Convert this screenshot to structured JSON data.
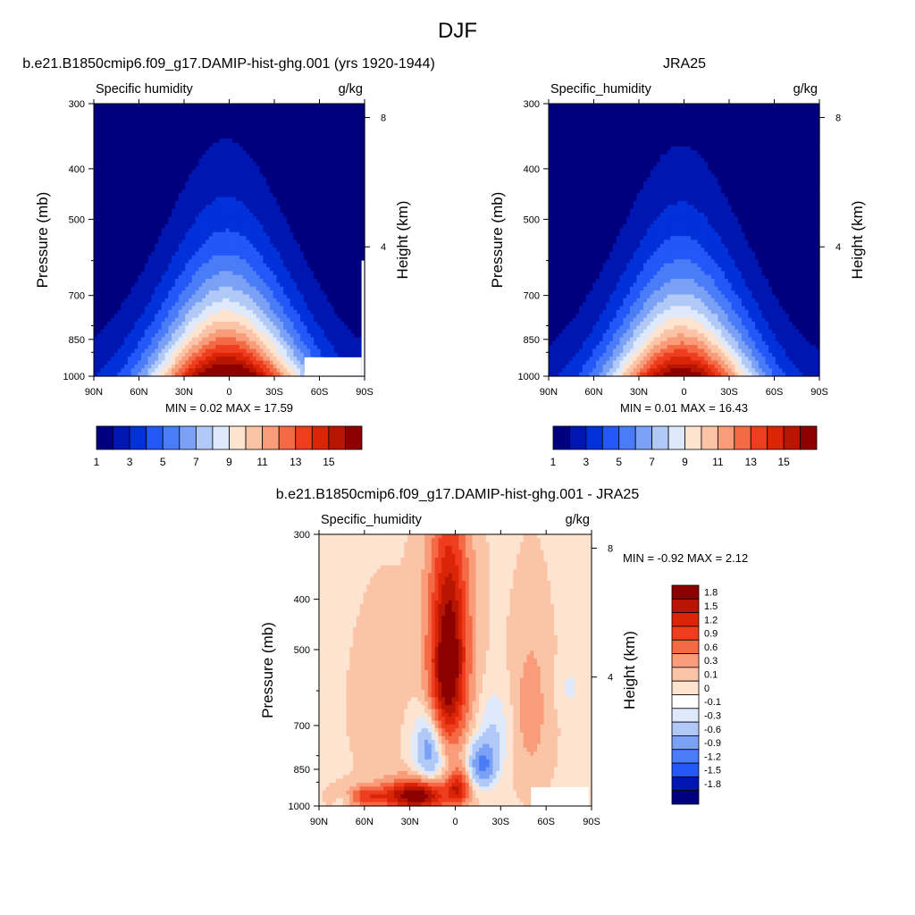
{
  "figure": {
    "title": "DJF"
  },
  "chart_data": [
    {
      "type": "heatmap",
      "panel": "model",
      "title": "b.e21.B1850cmip6.f09_g17.DAMIP-hist-ghg.001 (yrs 1920-1944)",
      "left_label": "Specific humidity",
      "units": "g/kg",
      "ylabel": "Pressure (mb)",
      "y2label": "Height (km)",
      "x_ticks": [
        "90N",
        "60N",
        "30N",
        "0",
        "30S",
        "60S",
        "90S"
      ],
      "x_range": [
        90,
        -90
      ],
      "y_ticks": [
        "300",
        "400",
        "500",
        "700",
        "850",
        "1000"
      ],
      "y_range_mb": [
        1000,
        300
      ],
      "y2_ticks": [
        "8",
        "4"
      ],
      "stats": {
        "min_label": "MIN =",
        "min": "0.02",
        "max_label": "MAX =",
        "max": "17.59"
      },
      "peak": {
        "lat": 0,
        "value": 17.59
      },
      "contour_levels": [
        1,
        2,
        3,
        4,
        5,
        6,
        7,
        8,
        9,
        10,
        11,
        12,
        13,
        14,
        15,
        16
      ],
      "colorbar_labels": [
        "1",
        "3",
        "5",
        "7",
        "9",
        "11",
        "13",
        "15"
      ],
      "colorbar_colors": [
        "#00007f",
        "#0016b1",
        "#0031d9",
        "#2357f8",
        "#4a7cf8",
        "#7aa1f6",
        "#b0c9f7",
        "#dee9fb",
        "#fde4d0",
        "#fbc4a6",
        "#f89c7a",
        "#f46a45",
        "#ef3d1f",
        "#db2507",
        "#b81502",
        "#8c0000"
      ]
    },
    {
      "type": "heatmap",
      "panel": "obs",
      "title": "JRA25",
      "left_label": "Specific_humidity",
      "units": "g/kg",
      "ylabel": "Pressure (mb)",
      "y2label": "Height (km)",
      "x_ticks": [
        "90N",
        "60N",
        "30N",
        "0",
        "30S",
        "60S",
        "90S"
      ],
      "x_range": [
        90,
        -90
      ],
      "y_ticks": [
        "300",
        "400",
        "500",
        "700",
        "850",
        "1000"
      ],
      "y_range_mb": [
        1000,
        300
      ],
      "y2_ticks": [
        "8",
        "4"
      ],
      "stats": {
        "min_label": "MIN =",
        "min": "0.01",
        "max_label": "MAX =",
        "max": "16.43"
      },
      "peak": {
        "lat": 0,
        "value": 16.43
      },
      "contour_levels": [
        1,
        2,
        3,
        4,
        5,
        6,
        7,
        8,
        9,
        10,
        11,
        12,
        13,
        14,
        15,
        16
      ],
      "colorbar_labels": [
        "1",
        "3",
        "5",
        "7",
        "9",
        "11",
        "13",
        "15"
      ],
      "colorbar_colors": [
        "#00007f",
        "#0016b1",
        "#0031d9",
        "#2357f8",
        "#4a7cf8",
        "#7aa1f6",
        "#b0c9f7",
        "#dee9fb",
        "#fde4d0",
        "#fbc4a6",
        "#f89c7a",
        "#f46a45",
        "#ef3d1f",
        "#db2507",
        "#b81502",
        "#8c0000"
      ]
    },
    {
      "type": "heatmap",
      "panel": "difference",
      "title": "b.e21.B1850cmip6.f09_g17.DAMIP-hist-ghg.001 - JRA25",
      "left_label": "Specific_humidity",
      "units": "g/kg",
      "ylabel": "Pressure (mb)",
      "y2label": "Height (km)",
      "x_ticks": [
        "90N",
        "60N",
        "30N",
        "0",
        "30S",
        "60S",
        "90S"
      ],
      "x_range": [
        90,
        -90
      ],
      "y_ticks": [
        "300",
        "400",
        "500",
        "700",
        "850",
        "1000"
      ],
      "y_range_mb": [
        1000,
        300
      ],
      "y2_ticks": [
        "8",
        "4"
      ],
      "stats": {
        "min_label": "MIN =",
        "min": "-0.92",
        "max_label": "MAX =",
        "max": "2.12"
      },
      "contour_levels": [
        -1.8,
        -1.5,
        -1.2,
        -0.9,
        -0.6,
        -0.3,
        -0.1,
        0,
        0.1,
        0.3,
        0.6,
        0.9,
        1.2,
        1.5,
        1.8
      ],
      "colorbar_labels": [
        "1.8",
        "1.5",
        "1.2",
        "0.9",
        "0.6",
        "0.3",
        "0.1",
        "0",
        "-0.1",
        "-0.3",
        "-0.6",
        "-0.9",
        "-1.2",
        "-1.5",
        "-1.8"
      ],
      "colorbar_colors": [
        "#8c0000",
        "#b81502",
        "#db2507",
        "#ef3d1f",
        "#f46a45",
        "#f89c7a",
        "#fbc4a6",
        "#fde4d0",
        "#ffffff",
        "#dee9fb",
        "#b0c9f7",
        "#7aa1f6",
        "#4a7cf8",
        "#2357f8",
        "#0016b1",
        "#00007f"
      ],
      "background_color": "#fde4d0"
    }
  ]
}
